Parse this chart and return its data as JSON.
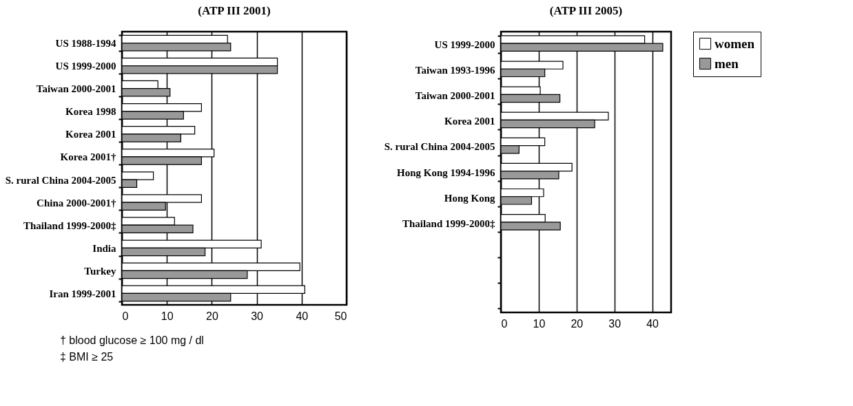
{
  "chart_data": [
    {
      "type": "bar",
      "orientation": "horizontal",
      "title": "(ATP III 2001)",
      "categories": [
        "US 1988-1994",
        "US 1999-2000",
        "Taiwan 2000-2001",
        "Korea 1998",
        "Korea 2001",
        "Korea 2001†",
        "S. rural China 2004-2005",
        "China 2000-2001†",
        "Thailand 1999-2000‡",
        "India",
        "Turkey",
        "Iran 1999-2001"
      ],
      "series": [
        {
          "name": "women",
          "color": "#ffffff",
          "values": [
            23.5,
            34.6,
            8.0,
            17.7,
            16.2,
            20.5,
            7.0,
            17.7,
            11.7,
            31.0,
            39.6,
            40.7
          ]
        },
        {
          "name": "men",
          "color": "#999999",
          "values": [
            24.2,
            34.6,
            10.7,
            13.7,
            13.1,
            17.7,
            3.3,
            9.7,
            15.8,
            18.5,
            27.9,
            24.2
          ]
        }
      ],
      "xlim": [
        0,
        50
      ],
      "xticks": [
        0,
        10,
        20,
        30,
        40,
        50
      ],
      "grid": "x",
      "legend": "right",
      "annotations": [
        "† blood glucose ≥ 100 mg / dl",
        "‡ BMI ≥ 25"
      ]
    },
    {
      "type": "bar",
      "orientation": "horizontal",
      "title": "(ATP III 2005)",
      "categories": [
        "US 1999-2000",
        "Taiwan 1993-1996",
        "Taiwan 2000-2001",
        "Korea 2001",
        "S. rural China 2004-2005",
        "Hong Kong 1994-1996",
        "Hong Kong",
        "Thailand 1999-2000‡",
        null,
        null,
        null
      ],
      "series": [
        {
          "name": "women",
          "color": "#ffffff",
          "values": [
            38.0,
            16.4,
            10.4,
            28.4,
            11.6,
            18.8,
            11.3,
            11.7,
            null,
            null,
            null
          ]
        },
        {
          "name": "men",
          "color": "#999999",
          "values": [
            42.8,
            11.6,
            15.6,
            24.8,
            4.8,
            15.3,
            8.1,
            15.7,
            null,
            null,
            null
          ]
        }
      ],
      "xlim": [
        0,
        45
      ],
      "xticks": [
        0,
        10,
        20,
        30,
        40
      ],
      "grid": "x",
      "legend": "right"
    }
  ]
}
